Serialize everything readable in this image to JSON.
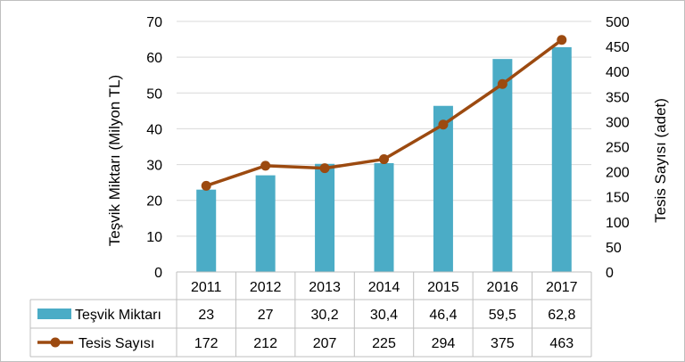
{
  "chart_data": {
    "type": "bar",
    "categories": [
      "2011",
      "2012",
      "2013",
      "2014",
      "2015",
      "2016",
      "2017"
    ],
    "series": [
      {
        "name": "Teşvik Miktarı",
        "type": "bar",
        "axis": "left",
        "color": "#4bacc6",
        "values": [
          23,
          27,
          30.2,
          30.4,
          46.4,
          59.5,
          62.8
        ],
        "labels": [
          "23",
          "27",
          "30,2",
          "30,4",
          "46,4",
          "59,5",
          "62,8"
        ]
      },
      {
        "name": "Tesis Sayısı",
        "type": "line",
        "axis": "right",
        "color": "#9c4a10",
        "values": [
          172,
          212,
          207,
          225,
          294,
          375,
          463
        ],
        "labels": [
          "172",
          "212",
          "207",
          "225",
          "294",
          "375",
          "463"
        ]
      }
    ],
    "ylabel": "Teşvik Miktarı (Milyon TL)",
    "ylim": [
      0,
      70
    ],
    "yticks": [
      "0",
      "10",
      "20",
      "30",
      "40",
      "50",
      "60",
      "70"
    ],
    "y2label": "Tesis Sayısı (adet)",
    "y2lim": [
      0,
      500
    ],
    "y2ticks": [
      "0",
      "50",
      "100",
      "150",
      "200",
      "250",
      "300",
      "350",
      "400",
      "450",
      "500"
    ],
    "grid": true,
    "legend": "data-table"
  }
}
